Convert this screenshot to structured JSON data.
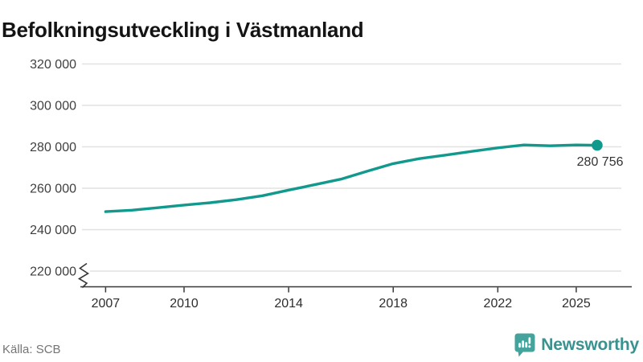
{
  "header": {
    "title": "Befolkningsutveckling i Västmanland"
  },
  "footer": {
    "source": "Källa: SCB",
    "brand": "Newsworthy"
  },
  "chart_data": {
    "type": "line",
    "title": "Befolkningsutveckling i Västmanland",
    "x": [
      2007,
      2008,
      2009,
      2010,
      2011,
      2012,
      2013,
      2014,
      2015,
      2016,
      2017,
      2018,
      2019,
      2020,
      2021,
      2022,
      2023,
      2024,
      2025,
      2025.8
    ],
    "values": [
      248700,
      249400,
      250600,
      251900,
      253000,
      254500,
      256400,
      259100,
      261700,
      264400,
      268200,
      271900,
      274300,
      276000,
      277800,
      279500,
      280900,
      280500,
      280900,
      280756
    ],
    "last_value": 280756,
    "last_value_label": "280 756",
    "xlabel": "",
    "ylabel": "",
    "yticks": [
      220000,
      240000,
      260000,
      280000,
      300000,
      320000
    ],
    "ytick_labels": [
      "220 000",
      "240 000",
      "260 000",
      "280 000",
      "300 000",
      "320 000"
    ],
    "xticks": [
      2007,
      2010,
      2014,
      2018,
      2022,
      2025
    ],
    "xtick_labels": [
      "2007",
      "2010",
      "2014",
      "2018",
      "2022",
      "2025"
    ],
    "ylim": [
      215000,
      326000
    ],
    "xlim": [
      2006,
      2027.1
    ],
    "grid": "horizontal",
    "legend": "none",
    "axis_break": true,
    "line_color": "#10998c",
    "dot_color": "#10998c",
    "gridline_color": "#e2e2e2",
    "axis_color": "#383838",
    "brand_color": "#3a918e",
    "logo_color": "#45a39e"
  }
}
